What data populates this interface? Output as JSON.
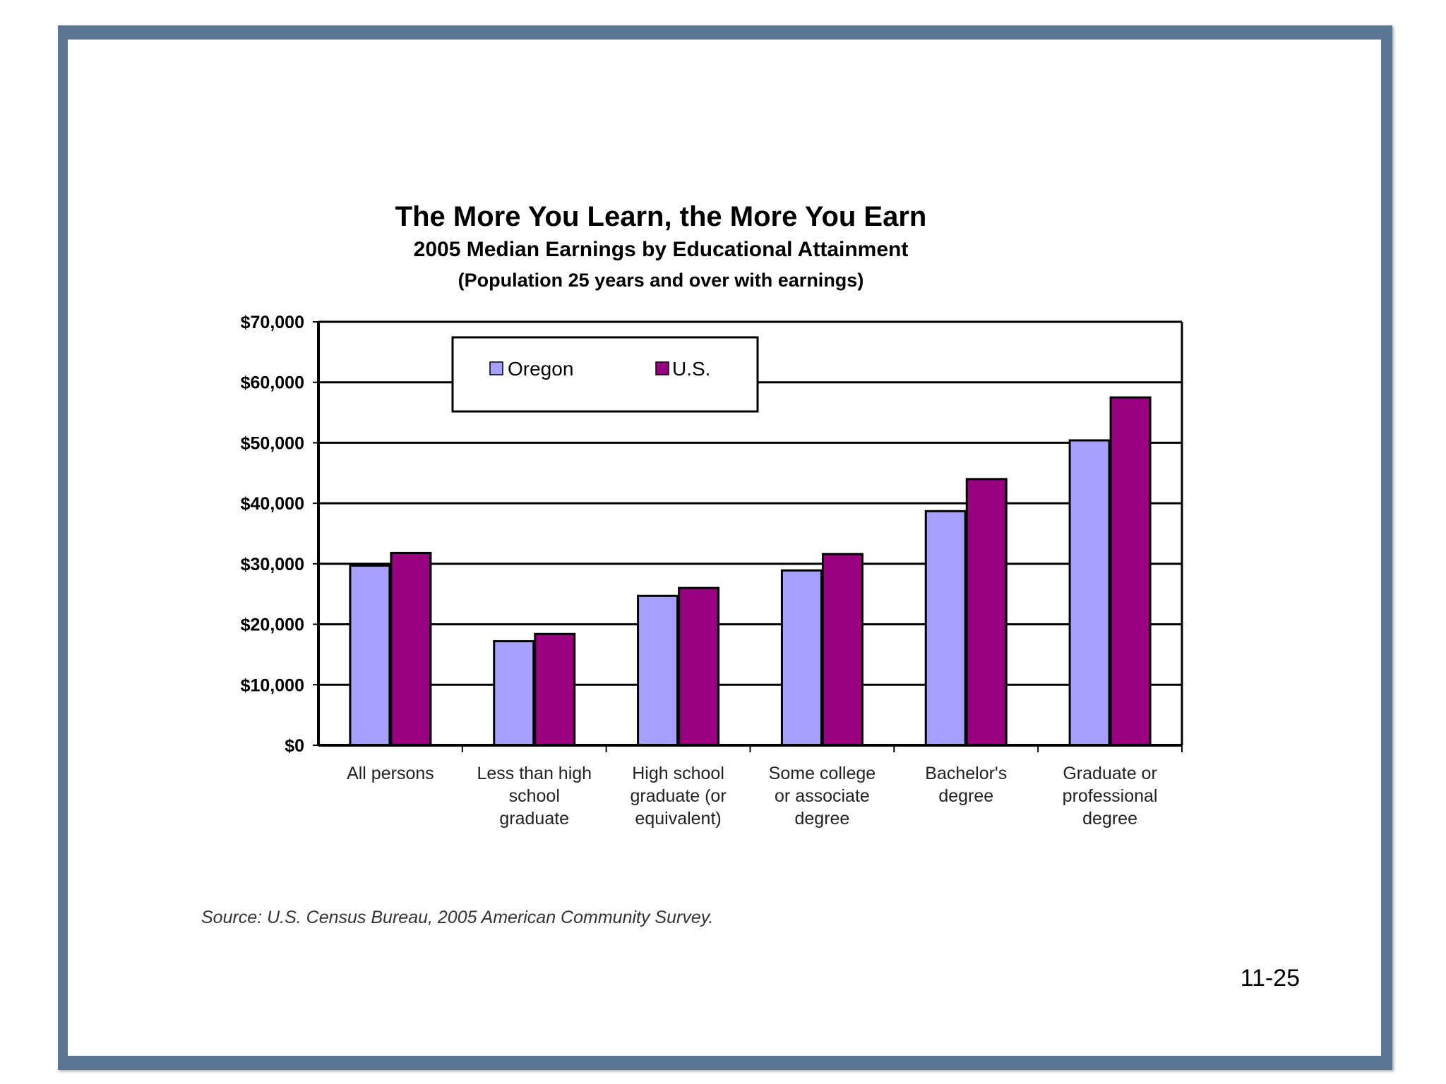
{
  "slide": {
    "number": "11-25",
    "source": "Source: U.S. Census Bureau, 2005 American Community Survey."
  },
  "colors": {
    "frame": "#5a7693",
    "oregon": "#a6a0ff",
    "us": "#990080",
    "grid": "#000000"
  },
  "chart_data": {
    "type": "bar",
    "title": "The More You Learn, the More You Earn",
    "subtitle": "2005 Median Earnings by Educational Attainment",
    "subtitle2": "(Population 25 years and over with earnings)",
    "categories": [
      [
        "All persons"
      ],
      [
        "Less than high",
        "school",
        "graduate"
      ],
      [
        "High school",
        "graduate (or",
        "equivalent)"
      ],
      [
        "Some college",
        "or associate",
        "degree"
      ],
      [
        "Bachelor's",
        "degree"
      ],
      [
        "Graduate or",
        "professional",
        "degree"
      ]
    ],
    "series": [
      {
        "name": "Oregon",
        "color": "#a6a0ff",
        "values": [
          29700,
          17200,
          24700,
          28900,
          38700,
          50400
        ]
      },
      {
        "name": "U.S.",
        "color": "#990080",
        "values": [
          31800,
          18400,
          26000,
          31600,
          44000,
          57500
        ]
      }
    ],
    "ylim": [
      0,
      70000
    ],
    "yticks": [
      0,
      10000,
      20000,
      30000,
      40000,
      50000,
      60000,
      70000
    ],
    "ytick_labels": [
      "$0",
      "$10,000",
      "$20,000",
      "$30,000",
      "$40,000",
      "$50,000",
      "$60,000",
      "$70,000"
    ],
    "grid": true,
    "legend": "top-left"
  }
}
